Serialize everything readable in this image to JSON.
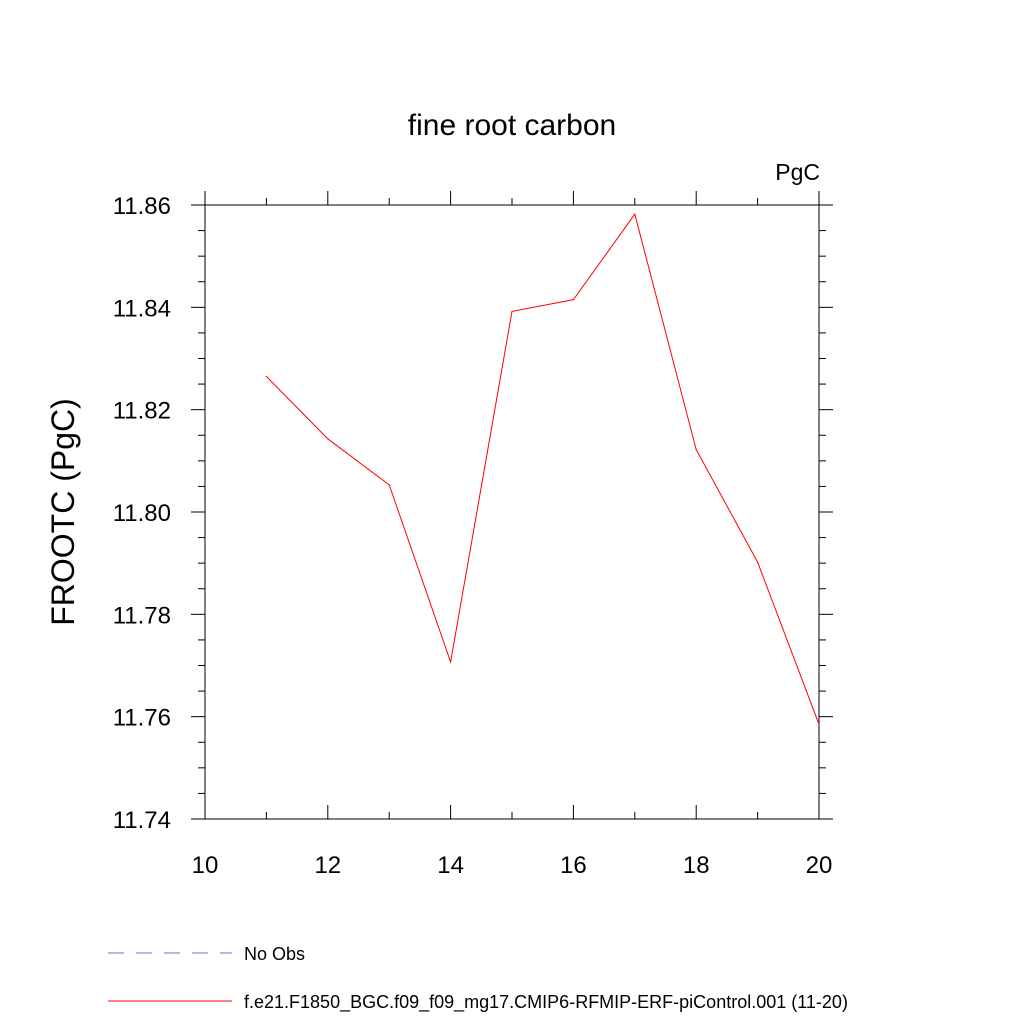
{
  "chart_data": {
    "type": "line",
    "title": "fine root carbon",
    "units_label": "PgC",
    "ylabel": "FROOTC  (PgC)",
    "xlabel": "",
    "xlim": [
      10,
      20
    ],
    "ylim": [
      11.74,
      11.86
    ],
    "x_ticks": [
      "10",
      "12",
      "14",
      "16",
      "18",
      "20"
    ],
    "y_ticks": [
      "11.74",
      "11.76",
      "11.78",
      "11.80",
      "11.82",
      "11.84",
      "11.86"
    ],
    "grid": false,
    "legend_position": "bottom",
    "series": [
      {
        "name": "f.e21.F1850_BGC.f09_f09_mg17.CMIP6-RFMIP-ERF-piControl.001 (11-20)",
        "color": "#ff0000",
        "x": [
          11,
          12,
          13,
          14,
          15,
          16,
          17,
          18,
          19,
          20
        ],
        "values": [
          11.8265,
          11.8143,
          11.8053,
          11.7707,
          11.8392,
          11.8415,
          11.8582,
          11.8122,
          11.7902,
          11.7585
        ]
      }
    ],
    "legend": [
      {
        "label": "No Obs",
        "style": "dashed",
        "color": "#7b68c8"
      },
      {
        "label": "f.e21.F1850_BGC.f09_f09_mg17.CMIP6-RFMIP-ERF-piControl.001 (11-20)",
        "style": "solid",
        "color": "#ff0000"
      }
    ]
  }
}
